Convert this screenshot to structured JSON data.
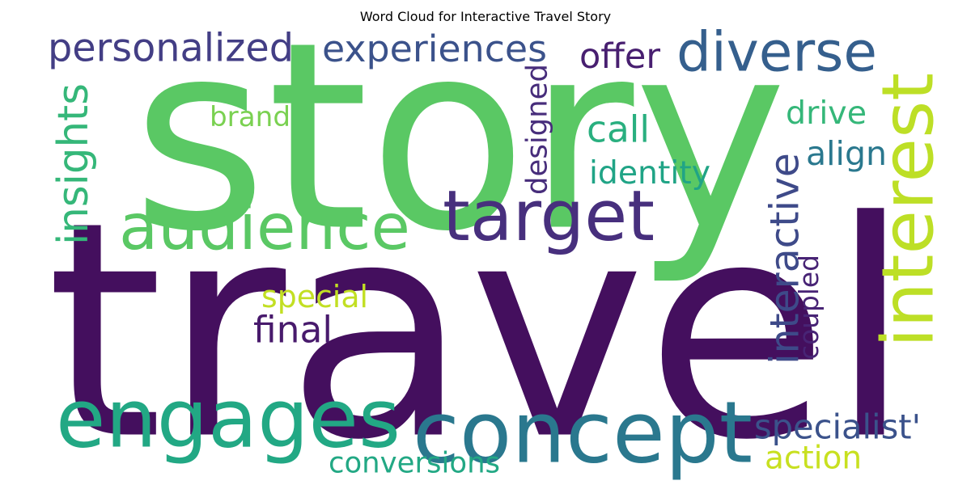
{
  "chart_data": {
    "type": "wordcloud",
    "title": "Word Cloud for Interactive Travel Story",
    "words": [
      {
        "text": "story",
        "color": "#5ac864"
      },
      {
        "text": "travel",
        "color": "#440f5e"
      },
      {
        "text": "concept",
        "color": "#2a788e"
      },
      {
        "text": "engages",
        "color": "#22a884"
      },
      {
        "text": "audience",
        "color": "#5ac864"
      },
      {
        "text": "target",
        "color": "#472f7d"
      },
      {
        "text": "interest",
        "color": "#bddf26"
      },
      {
        "text": "diverse",
        "color": "#355f8d"
      },
      {
        "text": "experiences",
        "color": "#3b528b"
      },
      {
        "text": "personalized",
        "color": "#433e85"
      },
      {
        "text": "insights",
        "color": "#35b779"
      },
      {
        "text": "interactive",
        "color": "#3e4a89"
      },
      {
        "text": "conversions",
        "color": "#22a884"
      },
      {
        "text": "specialist'",
        "color": "#3b528b"
      },
      {
        "text": "designed",
        "color": "#472d7b"
      },
      {
        "text": "identity",
        "color": "#20a486"
      },
      {
        "text": "coupled",
        "color": "#482475"
      },
      {
        "text": "brand",
        "color": "#7ad151"
      },
      {
        "text": "offer",
        "color": "#481f70"
      },
      {
        "text": "special",
        "color": "#c2df23"
      },
      {
        "text": "final",
        "color": "#481a6c"
      },
      {
        "text": "action",
        "color": "#c8e020"
      },
      {
        "text": "drive",
        "color": "#35b779"
      },
      {
        "text": "call",
        "color": "#29af7f"
      },
      {
        "text": "align",
        "color": "#2a788e"
      }
    ]
  }
}
